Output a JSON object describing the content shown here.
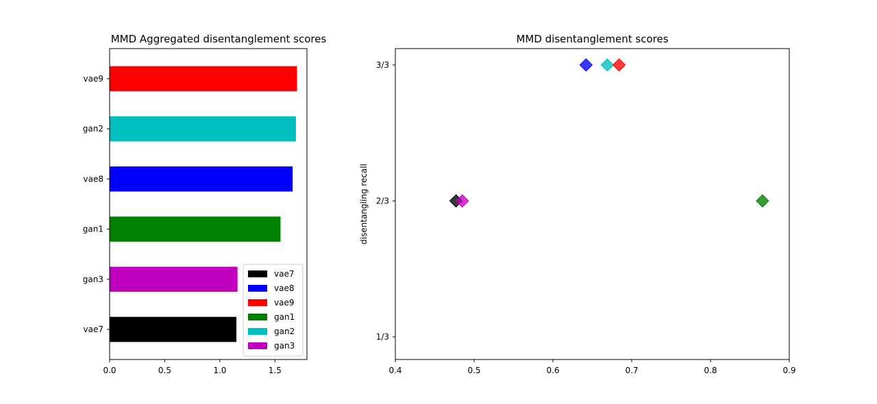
{
  "chart_data": [
    {
      "type": "bar",
      "orientation": "horizontal",
      "title": "MMD Aggregated disentanglement scores",
      "xlabel": "",
      "ylabel": "",
      "categories": [
        "vae7",
        "gan3",
        "gan1",
        "vae8",
        "gan2",
        "vae9"
      ],
      "values": [
        1.15,
        1.16,
        1.55,
        1.66,
        1.69,
        1.7
      ],
      "colors": [
        "#000000",
        "#bf00bf",
        "#008000",
        "#0000ff",
        "#00bfbf",
        "#ff0000"
      ],
      "xlim": [
        0,
        1.79
      ],
      "xticks": [
        "0.0",
        "0.5",
        "1.0",
        "1.5"
      ],
      "xtick_values": [
        0,
        0.5,
        1.0,
        1.5
      ],
      "legend": {
        "placement": "lower-right",
        "entries": [
          {
            "label": "vae7",
            "color": "#000000"
          },
          {
            "label": "vae8",
            "color": "#0000ff"
          },
          {
            "label": "vae9",
            "color": "#ff0000"
          },
          {
            "label": "gan1",
            "color": "#008000"
          },
          {
            "label": "gan2",
            "color": "#00bfbf"
          },
          {
            "label": "gan3",
            "color": "#bf00bf"
          }
        ]
      }
    },
    {
      "type": "scatter",
      "title": "MMD disentanglement scores",
      "xlabel": "",
      "ylabel": "disentangling recall",
      "marker": "diamond",
      "xlim": [
        0.4,
        0.9
      ],
      "ylim": [
        0.278,
        1.04
      ],
      "xticks": [
        "0.4",
        "0.5",
        "0.6",
        "0.7",
        "0.8",
        "0.9"
      ],
      "xtick_values": [
        0.4,
        0.5,
        0.6,
        0.7,
        0.8,
        0.9
      ],
      "yticks": [
        "1/3",
        "2/3",
        "3/3"
      ],
      "ytick_values": [
        0.3333,
        0.6667,
        1.0
      ],
      "points": [
        {
          "name": "vae7",
          "x": 0.477,
          "y": 0.6667,
          "color": "#000000"
        },
        {
          "name": "gan3",
          "x": 0.485,
          "y": 0.6667,
          "color": "#bf00bf"
        },
        {
          "name": "vae8",
          "x": 0.642,
          "y": 1.0,
          "color": "#0000ff"
        },
        {
          "name": "gan2",
          "x": 0.669,
          "y": 1.0,
          "color": "#00bfbf"
        },
        {
          "name": "vae9",
          "x": 0.684,
          "y": 1.0,
          "color": "#ff0000"
        },
        {
          "name": "gan1",
          "x": 0.866,
          "y": 0.6667,
          "color": "#008000"
        }
      ]
    }
  ]
}
